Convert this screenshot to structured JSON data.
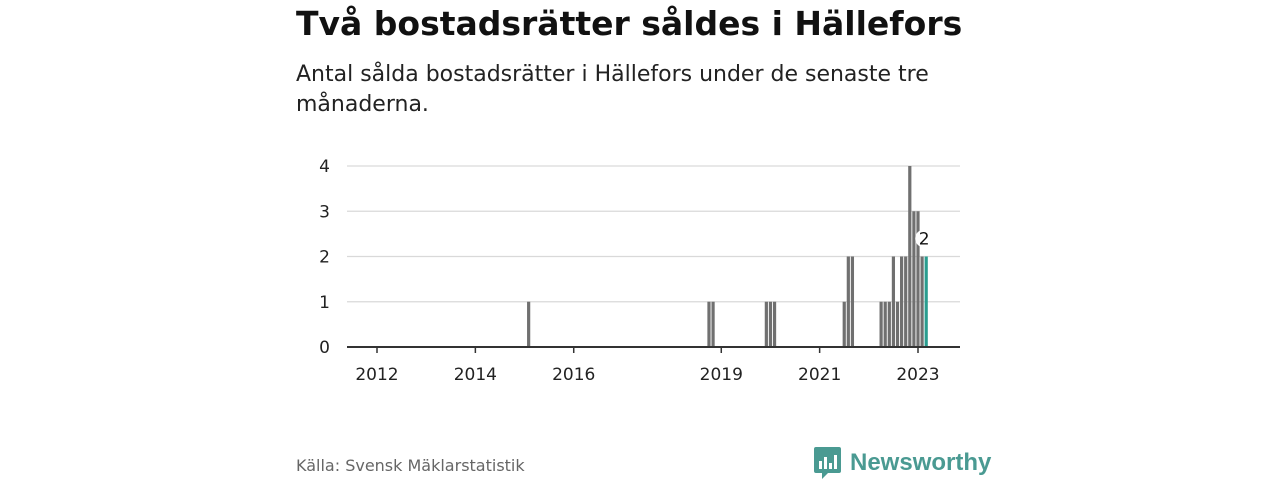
{
  "header": {
    "title": "Två bostadsrätter såldes i Hällefors",
    "subtitle": "Antal sålda bostadsrätter i Hällefors under de senaste tre månaderna."
  },
  "footer": {
    "source": "Källa: Svensk Mäklarstatistik",
    "brand": "Newsworthy",
    "brand_icon": "newsworthy-logo-icon"
  },
  "colors": {
    "bar": "#707070",
    "highlight": "#2a9d8f",
    "grid": "#d9d9d9",
    "axis": "#333333",
    "brand": "#4a9a92"
  },
  "chart_data": {
    "type": "bar",
    "title": "Två bostadsrätter såldes i Hällefors",
    "subtitle": "Antal sålda bostadsrätter i Hällefors under de senaste tre månaderna.",
    "xlabel": "",
    "ylabel": "",
    "xlim": [
      "2011-06",
      "2023-09"
    ],
    "ylim": [
      0,
      4
    ],
    "yticks": [
      "0",
      "1",
      "2",
      "3",
      "4"
    ],
    "xticks": [
      {
        "date": "2012-01",
        "label": "2012"
      },
      {
        "date": "2014-01",
        "label": "2014"
      },
      {
        "date": "2016-01",
        "label": "2016"
      },
      {
        "date": "2019-01",
        "label": "2019"
      },
      {
        "date": "2021-01",
        "label": "2021"
      },
      {
        "date": "2023-01",
        "label": "2023"
      }
    ],
    "grid": true,
    "legend": "none",
    "bars": [
      {
        "date": "2015-02",
        "value": 1
      },
      {
        "date": "2018-10",
        "value": 1
      },
      {
        "date": "2018-11",
        "value": 1
      },
      {
        "date": "2019-12",
        "value": 1
      },
      {
        "date": "2020-01",
        "value": 1
      },
      {
        "date": "2020-02",
        "value": 1
      },
      {
        "date": "2021-07",
        "value": 1
      },
      {
        "date": "2021-08",
        "value": 2
      },
      {
        "date": "2021-09",
        "value": 2
      },
      {
        "date": "2022-04",
        "value": 1
      },
      {
        "date": "2022-05",
        "value": 1
      },
      {
        "date": "2022-06",
        "value": 1
      },
      {
        "date": "2022-07",
        "value": 2
      },
      {
        "date": "2022-08",
        "value": 1
      },
      {
        "date": "2022-09",
        "value": 2
      },
      {
        "date": "2022-10",
        "value": 2
      },
      {
        "date": "2022-11",
        "value": 4
      },
      {
        "date": "2022-12",
        "value": 3
      },
      {
        "date": "2023-01",
        "value": 3
      },
      {
        "date": "2023-02",
        "value": 2
      },
      {
        "date": "2023-03",
        "value": 2,
        "highlight": true
      }
    ],
    "annotations": [
      {
        "date": "2023-03",
        "value": 2,
        "text": "2"
      }
    ]
  }
}
